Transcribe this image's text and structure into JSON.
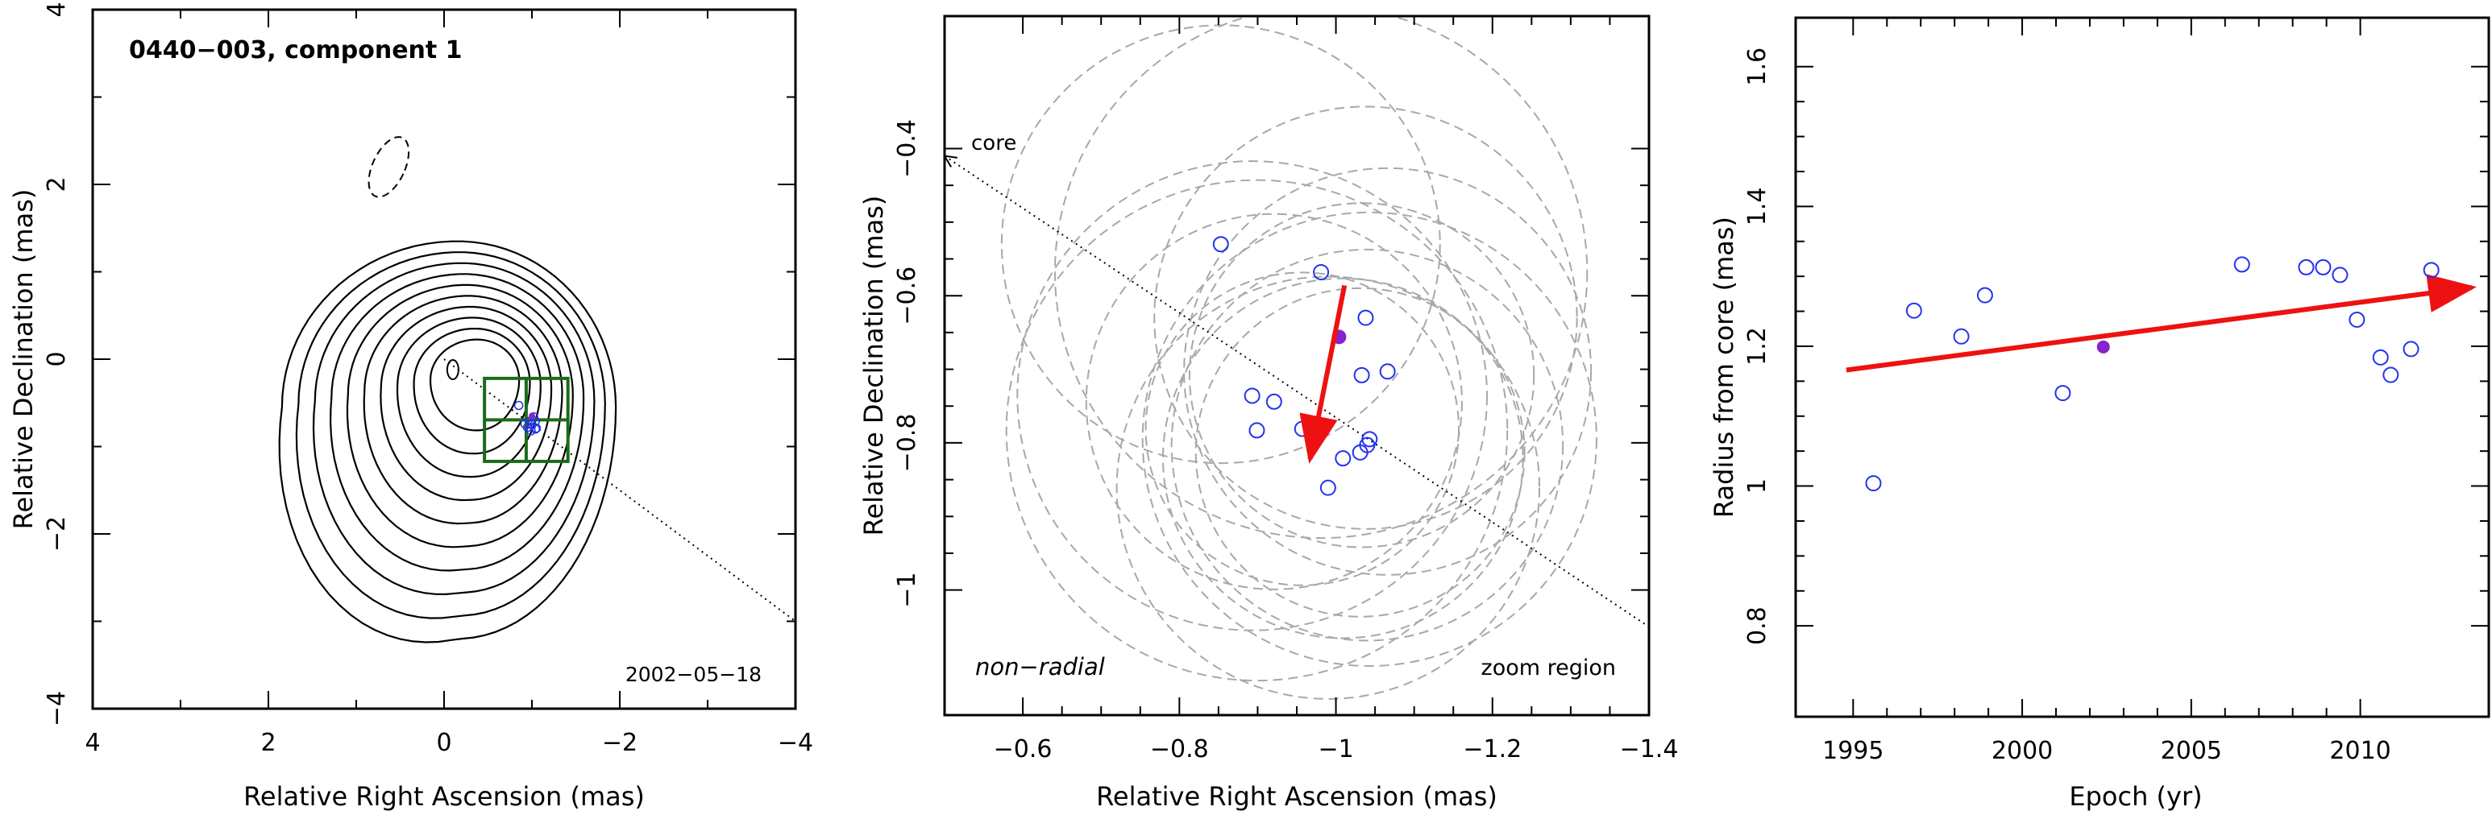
{
  "chart_data": [
    {
      "type": "contour",
      "panel": "left",
      "title": "0440−003, component 1",
      "date_label": "2002−05−18",
      "xlabel": "Relative Right Ascension (mas)",
      "ylabel": "Relative Declination (mas)",
      "xlim": [
        4,
        -4
      ],
      "ylim": [
        -4,
        4
      ],
      "x_ticks": [
        4,
        2,
        0,
        -2,
        -4
      ],
      "x_tick_labels": [
        "4",
        "2",
        "0",
        "−2",
        "−4"
      ],
      "y_ticks": [
        -4,
        -2,
        0,
        2,
        4
      ],
      "y_tick_labels": [
        "−4",
        "−2",
        "0",
        "2",
        "4"
      ],
      "contour_levels": 10,
      "core_direction_line": {
        "from": [
          0,
          0
        ],
        "to": [
          -4,
          -3
        ]
      },
      "zoom_box": {
        "x": [
          -0.46,
          -1.41
        ],
        "y": [
          -0.22,
          -1.17
        ]
      },
      "component_points": [
        [
          -0.85,
          -0.53
        ],
        [
          -0.92,
          -0.74
        ],
        [
          -0.95,
          -0.78
        ],
        [
          -0.99,
          -0.82
        ],
        [
          -1.02,
          -0.66
        ],
        [
          -1.04,
          -0.71
        ],
        [
          -1.04,
          -0.8
        ],
        [
          -1.05,
          -0.79
        ],
        [
          -0.98,
          -0.71
        ],
        [
          -1.0,
          -0.75
        ]
      ],
      "highlight_point": [
        -1.0,
        -0.65
      ]
    },
    {
      "type": "scatter",
      "panel": "middle",
      "xlabel": "Relative Right Ascension (mas)",
      "ylabel": "Relative Declination (mas)",
      "xlim": [
        -0.5,
        -1.4
      ],
      "ylim": [
        -1.17,
        -0.22
      ],
      "x_ticks": [
        -0.6,
        -0.8,
        -1,
        -1.2,
        -1.4
      ],
      "x_tick_labels": [
        "−0.6",
        "−0.8",
        "−1",
        "−1.2",
        "−1.4"
      ],
      "y_ticks": [
        -1,
        -0.8,
        -0.6,
        -0.4
      ],
      "y_tick_labels": [
        "−1",
        "−0.8",
        "−0.6",
        "−0.4"
      ],
      "annotations": [
        "core",
        "non−radial",
        "zoom region"
      ],
      "points": [
        {
          "x": -0.853,
          "y": -0.53,
          "r": 0.28
        },
        {
          "x": -0.981,
          "y": -0.568,
          "r": 0.34
        },
        {
          "x": -1.038,
          "y": -0.63,
          "r": 0.27
        },
        {
          "x": -1.066,
          "y": -0.703,
          "r": 0.26
        },
        {
          "x": -1.033,
          "y": -0.708,
          "r": 0.22
        },
        {
          "x": -0.893,
          "y": -0.736,
          "r": 0.3
        },
        {
          "x": -0.921,
          "y": -0.744,
          "r": 0.24
        },
        {
          "x": -0.899,
          "y": -0.783,
          "r": 0.32
        },
        {
          "x": -0.957,
          "y": -0.781,
          "r": 0.2
        },
        {
          "x": -1.043,
          "y": -0.795,
          "r": 0.29
        },
        {
          "x": -1.04,
          "y": -0.803,
          "r": 0.25
        },
        {
          "x": -1.031,
          "y": -0.813,
          "r": 0.21
        },
        {
          "x": -1.009,
          "y": -0.821,
          "r": 0.23
        },
        {
          "x": -0.99,
          "y": -0.861,
          "r": 0.27
        }
      ],
      "highlight_point": {
        "x": -1.004,
        "y": -0.656
      },
      "arrow": {
        "from": [
          -1.011,
          -0.586
        ],
        "to": [
          -0.967,
          -0.822
        ]
      },
      "core_direction_line": {
        "from": [
          -0.5,
          -0.41
        ],
        "to": [
          -1.4,
          -1.05
        ]
      }
    },
    {
      "type": "scatter",
      "panel": "right",
      "xlabel": "Epoch (yr)",
      "ylabel": "Radius from core (mas)",
      "xlim": [
        1993.3,
        2013.8
      ],
      "ylim": [
        0.67,
        1.67
      ],
      "x_ticks": [
        1995,
        2000,
        2005,
        2010
      ],
      "x_tick_labels": [
        "1995",
        "2000",
        "2005",
        "2010"
      ],
      "y_ticks": [
        0.8,
        1,
        1.2,
        1.4,
        1.6
      ],
      "y_tick_labels": [
        "0.8",
        "1",
        "1.2",
        "1.4",
        "1.6"
      ],
      "points": [
        {
          "x": 1995.6,
          "y": 1.004
        },
        {
          "x": 1996.8,
          "y": 1.251
        },
        {
          "x": 1998.2,
          "y": 1.214
        },
        {
          "x": 1998.9,
          "y": 1.273
        },
        {
          "x": 2001.2,
          "y": 1.133
        },
        {
          "x": 2006.5,
          "y": 1.317
        },
        {
          "x": 2008.4,
          "y": 1.313
        },
        {
          "x": 2008.9,
          "y": 1.313
        },
        {
          "x": 2009.4,
          "y": 1.302
        },
        {
          "x": 2009.9,
          "y": 1.238
        },
        {
          "x": 2010.6,
          "y": 1.184
        },
        {
          "x": 2010.9,
          "y": 1.159
        },
        {
          "x": 2011.5,
          "y": 1.196
        },
        {
          "x": 2012.1,
          "y": 1.309
        }
      ],
      "highlight_point": {
        "x": 2002.4,
        "y": 1.199
      },
      "fit_line": {
        "from": [
          1994.8,
          1.166
        ],
        "to": [
          2013.3,
          1.284
        ]
      }
    }
  ]
}
